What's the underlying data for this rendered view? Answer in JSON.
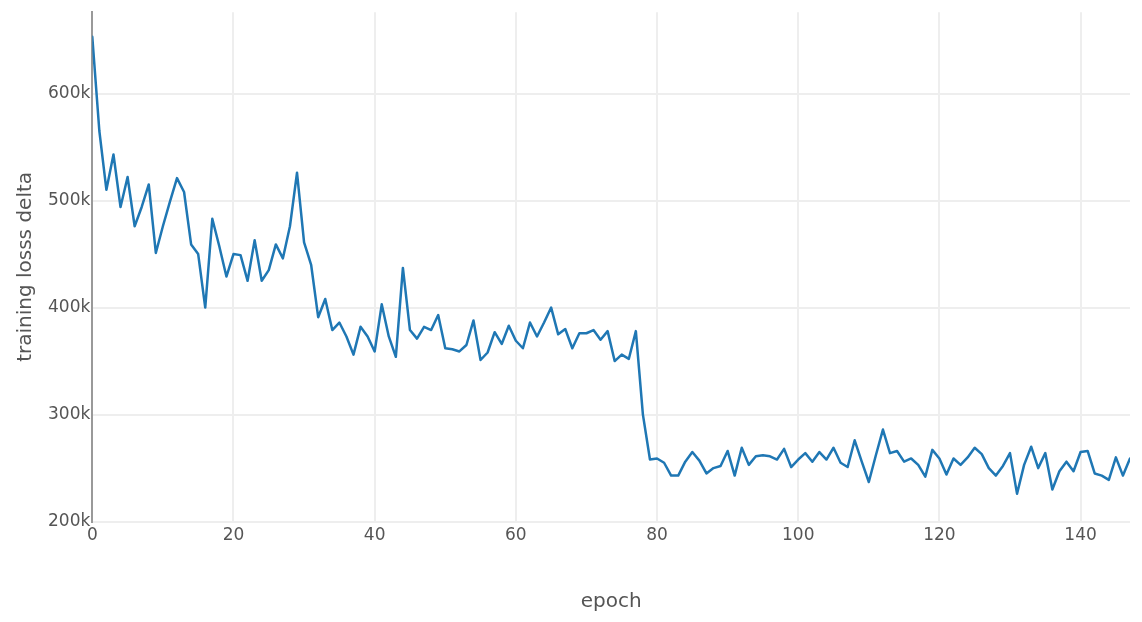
{
  "chart_data": {
    "type": "line",
    "xlabel": "epoch",
    "ylabel": "training losss delta",
    "x": [
      0,
      1,
      2,
      3,
      4,
      5,
      6,
      7,
      8,
      9,
      10,
      11,
      12,
      13,
      14,
      15,
      16,
      17,
      18,
      19,
      20,
      21,
      22,
      23,
      24,
      25,
      26,
      27,
      28,
      29,
      30,
      31,
      32,
      33,
      34,
      35,
      36,
      37,
      38,
      39,
      40,
      41,
      42,
      43,
      44,
      45,
      46,
      47,
      48,
      49,
      50,
      51,
      52,
      53,
      54,
      55,
      56,
      57,
      58,
      59,
      60,
      61,
      62,
      63,
      64,
      65,
      66,
      67,
      68,
      69,
      70,
      71,
      72,
      73,
      74,
      75,
      76,
      77,
      78,
      79,
      80,
      81,
      82,
      83,
      84,
      85,
      86,
      87,
      88,
      89,
      90,
      91,
      92,
      93,
      94,
      95,
      96,
      97,
      98,
      99,
      100,
      101,
      102,
      103,
      104,
      105,
      106,
      107,
      108,
      109,
      110,
      111,
      112,
      113,
      114,
      115,
      116,
      117,
      118,
      119,
      120,
      121,
      122,
      123,
      124,
      125,
      126,
      127,
      128,
      129,
      130,
      131,
      132,
      133,
      134,
      135,
      136,
      137,
      138,
      139,
      140,
      141,
      142,
      143,
      144,
      145,
      146,
      147
    ],
    "series": [
      {
        "color": "#1f77b4",
        "values": [
          653000,
          565000,
          510000,
          543000,
          494000,
          522000,
          476000,
          494000,
          515000,
          451000,
          476000,
          499000,
          521000,
          508000,
          459000,
          450000,
          400000,
          483000,
          457000,
          429000,
          450000,
          449000,
          425000,
          463000,
          425000,
          435000,
          459000,
          446000,
          476000,
          526000,
          461000,
          440000,
          391000,
          408000,
          379000,
          386000,
          373000,
          356000,
          382000,
          373000,
          359000,
          403000,
          373000,
          354000,
          437000,
          379000,
          371000,
          382000,
          379000,
          393000,
          362000,
          361000,
          359000,
          365000,
          388000,
          351000,
          358000,
          377000,
          366000,
          383000,
          369000,
          362000,
          386000,
          373000,
          386000,
          400000,
          375000,
          380000,
          362000,
          376000,
          376000,
          379000,
          370000,
          378000,
          350000,
          356000,
          352000,
          378000,
          300000,
          258000,
          259000,
          255000,
          243000,
          243000,
          256000,
          265000,
          257000,
          245000,
          250000,
          252000,
          266000,
          243000,
          269000,
          253000,
          261000,
          262000,
          261000,
          258000,
          268000,
          251000,
          258000,
          264000,
          256000,
          265000,
          258000,
          269000,
          255000,
          251000,
          276000,
          256000,
          237000,
          262000,
          286000,
          264000,
          266000,
          256000,
          259000,
          253000,
          242000,
          267000,
          259000,
          244000,
          259000,
          253000,
          260000,
          269000,
          263000,
          250000,
          243000,
          252000,
          264000,
          226000,
          253000,
          270000,
          250000,
          264000,
          230000,
          247000,
          256000,
          247000,
          265000,
          266000,
          245000,
          243000,
          239000,
          260000,
          243000,
          259000
        ]
      }
    ],
    "xlim": [
      0,
      147
    ],
    "ylim": [
      200000,
      676000
    ],
    "xticks": [
      0,
      20,
      40,
      60,
      80,
      100,
      120,
      140
    ],
    "yticks": [
      {
        "value": 200000,
        "label": "200k"
      },
      {
        "value": 300000,
        "label": "300k"
      },
      {
        "value": 400000,
        "label": "400k"
      },
      {
        "value": 500000,
        "label": "500k"
      },
      {
        "value": 600000,
        "label": "600k"
      }
    ],
    "grid": true,
    "marker": "none",
    "line_style": "solid",
    "legend": false
  }
}
